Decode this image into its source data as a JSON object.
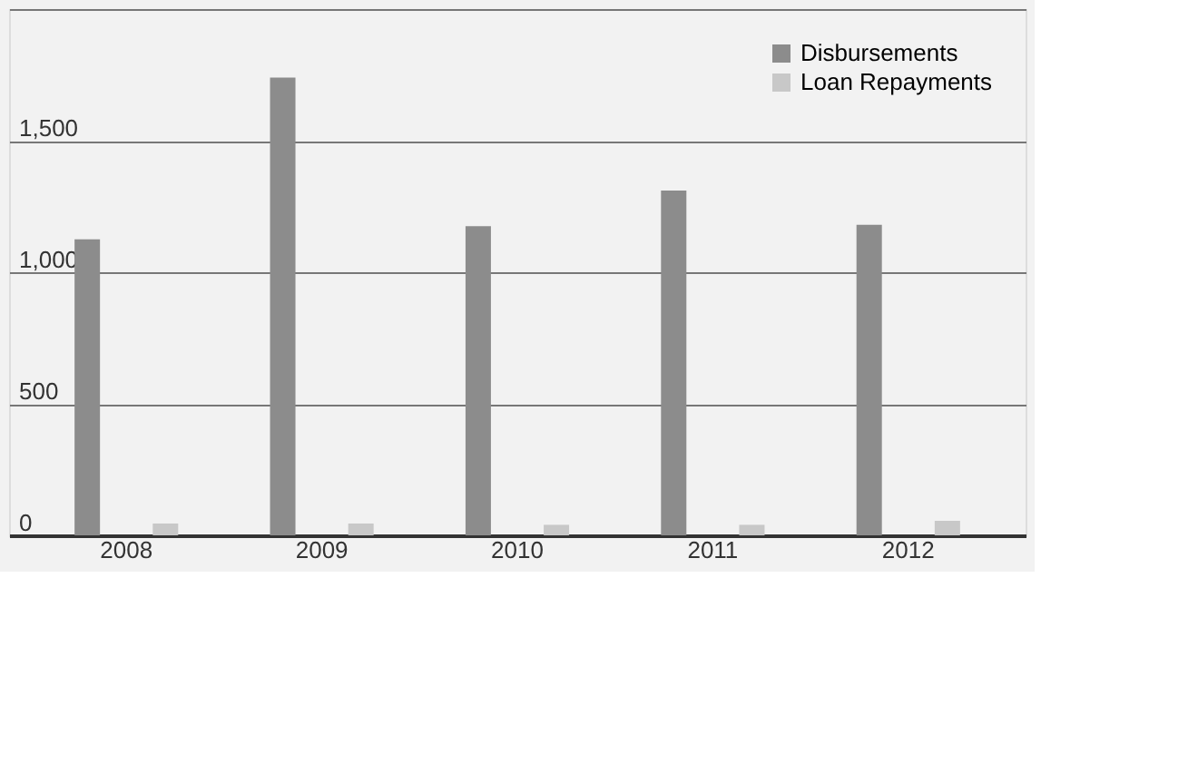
{
  "chart_data": {
    "type": "bar",
    "categories": [
      "2008",
      "2009",
      "2010",
      "2011",
      "2012"
    ],
    "series": [
      {
        "name": "Disbursements",
        "color": "#8c8c8c",
        "values": [
          1125,
          1740,
          1175,
          1310,
          1180
        ]
      },
      {
        "name": "Loan Repayments",
        "color": "#c8c8c8",
        "values": [
          45,
          45,
          40,
          40,
          55
        ]
      }
    ],
    "ylim": [
      0,
      2000
    ],
    "yticks": [
      0,
      500,
      {
        "value": 1000,
        "label": "1,000"
      },
      {
        "value": 1500,
        "label": "1,500"
      },
      {
        "value": 2000,
        "label": null
      }
    ],
    "grid": "y",
    "legend": "top right"
  }
}
